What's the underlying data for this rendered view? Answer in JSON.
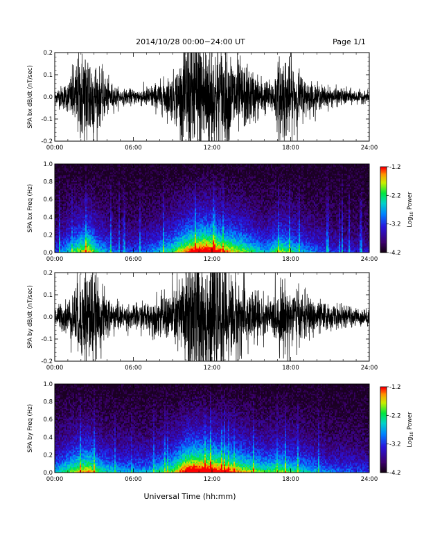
{
  "header": {
    "title": "2014/10/28  00:00−24:00 UT",
    "page": "Page 1/1"
  },
  "xlabel": "Universal Time (hh:mm)",
  "chart_data": [
    {
      "type": "line",
      "ylabel": "SPA bx dB/dt (nT/sec)",
      "xlim": [
        0,
        24
      ],
      "ylim": [
        -0.2,
        0.2
      ],
      "xticks": [
        "00:00",
        "06:00",
        "12:00",
        "18:00",
        "24:00"
      ],
      "yticks": [
        "-0.2",
        "-0.1",
        "0.0",
        "0.1",
        "0.2"
      ],
      "activity": [
        [
          0,
          0.03
        ],
        [
          1,
          0.06
        ],
        [
          1.8,
          0.17
        ],
        [
          2.6,
          0.22
        ],
        [
          3.3,
          0.12
        ],
        [
          4.2,
          0.06
        ],
        [
          5,
          0.03
        ],
        [
          6,
          0.03
        ],
        [
          7,
          0.04
        ],
        [
          8,
          0.06
        ],
        [
          9,
          0.09
        ],
        [
          9.6,
          0.15
        ],
        [
          10.2,
          0.28
        ],
        [
          11,
          0.3
        ],
        [
          12,
          0.23
        ],
        [
          13,
          0.2
        ],
        [
          14,
          0.15
        ],
        [
          15,
          0.11
        ],
        [
          16,
          0.07
        ],
        [
          16.5,
          0.06
        ],
        [
          17.3,
          0.18
        ],
        [
          18,
          0.15
        ],
        [
          19,
          0.08
        ],
        [
          20,
          0.05
        ],
        [
          21,
          0.04
        ],
        [
          22.5,
          0.03
        ],
        [
          24,
          0.02
        ]
      ],
      "color": "#000000"
    },
    {
      "type": "heatmap",
      "ylabel": "SPA bx Freq (Hz)",
      "xlim": [
        0,
        24
      ],
      "ylim": [
        0,
        1.0
      ],
      "xticks": [
        "00:00",
        "06:00",
        "12:00",
        "18:00",
        "24:00"
      ],
      "yticks": [
        "0.0",
        "0.2",
        "0.4",
        "0.6",
        "0.8",
        "1.0"
      ],
      "colorbar": {
        "label": "Log",
        "label_sub": "10",
        "label_tail": " Power",
        "range": [
          -4.2,
          -1.2
        ],
        "ticks": [
          "-1.2",
          "-2.2",
          "-3.2",
          "-4.2"
        ]
      },
      "activity": [
        [
          0,
          0.2
        ],
        [
          1.8,
          0.45
        ],
        [
          2.6,
          0.55
        ],
        [
          3.3,
          0.35
        ],
        [
          5,
          0.2
        ],
        [
          7,
          0.25
        ],
        [
          9,
          0.4
        ],
        [
          10.2,
          0.6
        ],
        [
          11.5,
          0.7
        ],
        [
          13,
          0.55
        ],
        [
          14.5,
          0.45
        ],
        [
          16,
          0.3
        ],
        [
          17.3,
          0.45
        ],
        [
          19,
          0.3
        ],
        [
          21,
          0.2
        ],
        [
          24,
          0.15
        ]
      ]
    },
    {
      "type": "line",
      "ylabel": "SPA by dB/dt (nT/sec)",
      "xlim": [
        0,
        24
      ],
      "ylim": [
        -0.2,
        0.2
      ],
      "xticks": [
        "00:00",
        "06:00",
        "12:00",
        "18:00",
        "24:00"
      ],
      "yticks": [
        "-0.2",
        "-0.1",
        "0.0",
        "0.1",
        "0.2"
      ],
      "activity": [
        [
          0,
          0.04
        ],
        [
          1,
          0.07
        ],
        [
          1.8,
          0.15
        ],
        [
          2.6,
          0.23
        ],
        [
          3.3,
          0.13
        ],
        [
          4.2,
          0.08
        ],
        [
          5,
          0.05
        ],
        [
          6,
          0.05
        ],
        [
          7,
          0.06
        ],
        [
          8,
          0.08
        ],
        [
          9,
          0.11
        ],
        [
          9.6,
          0.16
        ],
        [
          10.2,
          0.3
        ],
        [
          11,
          0.3
        ],
        [
          12,
          0.25
        ],
        [
          13,
          0.2
        ],
        [
          14,
          0.15
        ],
        [
          15,
          0.12
        ],
        [
          16,
          0.08
        ],
        [
          16.5,
          0.07
        ],
        [
          17.3,
          0.14
        ],
        [
          18,
          0.13
        ],
        [
          19,
          0.09
        ],
        [
          20,
          0.07
        ],
        [
          21,
          0.05
        ],
        [
          22.5,
          0.04
        ],
        [
          24,
          0.03
        ]
      ],
      "color": "#000000"
    },
    {
      "type": "heatmap",
      "ylabel": "SPA by Freq (Hz)",
      "xlim": [
        0,
        24
      ],
      "ylim": [
        0,
        1.0
      ],
      "xticks": [
        "00:00",
        "06:00",
        "12:00",
        "18:00",
        "24:00"
      ],
      "yticks": [
        "0.0",
        "0.2",
        "0.4",
        "0.6",
        "0.8",
        "1.0"
      ],
      "colorbar": {
        "label": "Log",
        "label_sub": "10",
        "label_tail": " Power",
        "range": [
          -4.2,
          -1.2
        ],
        "ticks": [
          "-1.2",
          "-2.2",
          "-3.2",
          "-4.2"
        ]
      },
      "activity": [
        [
          0,
          0.3
        ],
        [
          1.8,
          0.5
        ],
        [
          2.6,
          0.55
        ],
        [
          3.3,
          0.4
        ],
        [
          5,
          0.3
        ],
        [
          7,
          0.3
        ],
        [
          9,
          0.45
        ],
        [
          10.2,
          0.7
        ],
        [
          11.5,
          0.7
        ],
        [
          13,
          0.6
        ],
        [
          14.5,
          0.5
        ],
        [
          16,
          0.4
        ],
        [
          17.3,
          0.45
        ],
        [
          19,
          0.35
        ],
        [
          21,
          0.25
        ],
        [
          24,
          0.2
        ]
      ]
    }
  ]
}
